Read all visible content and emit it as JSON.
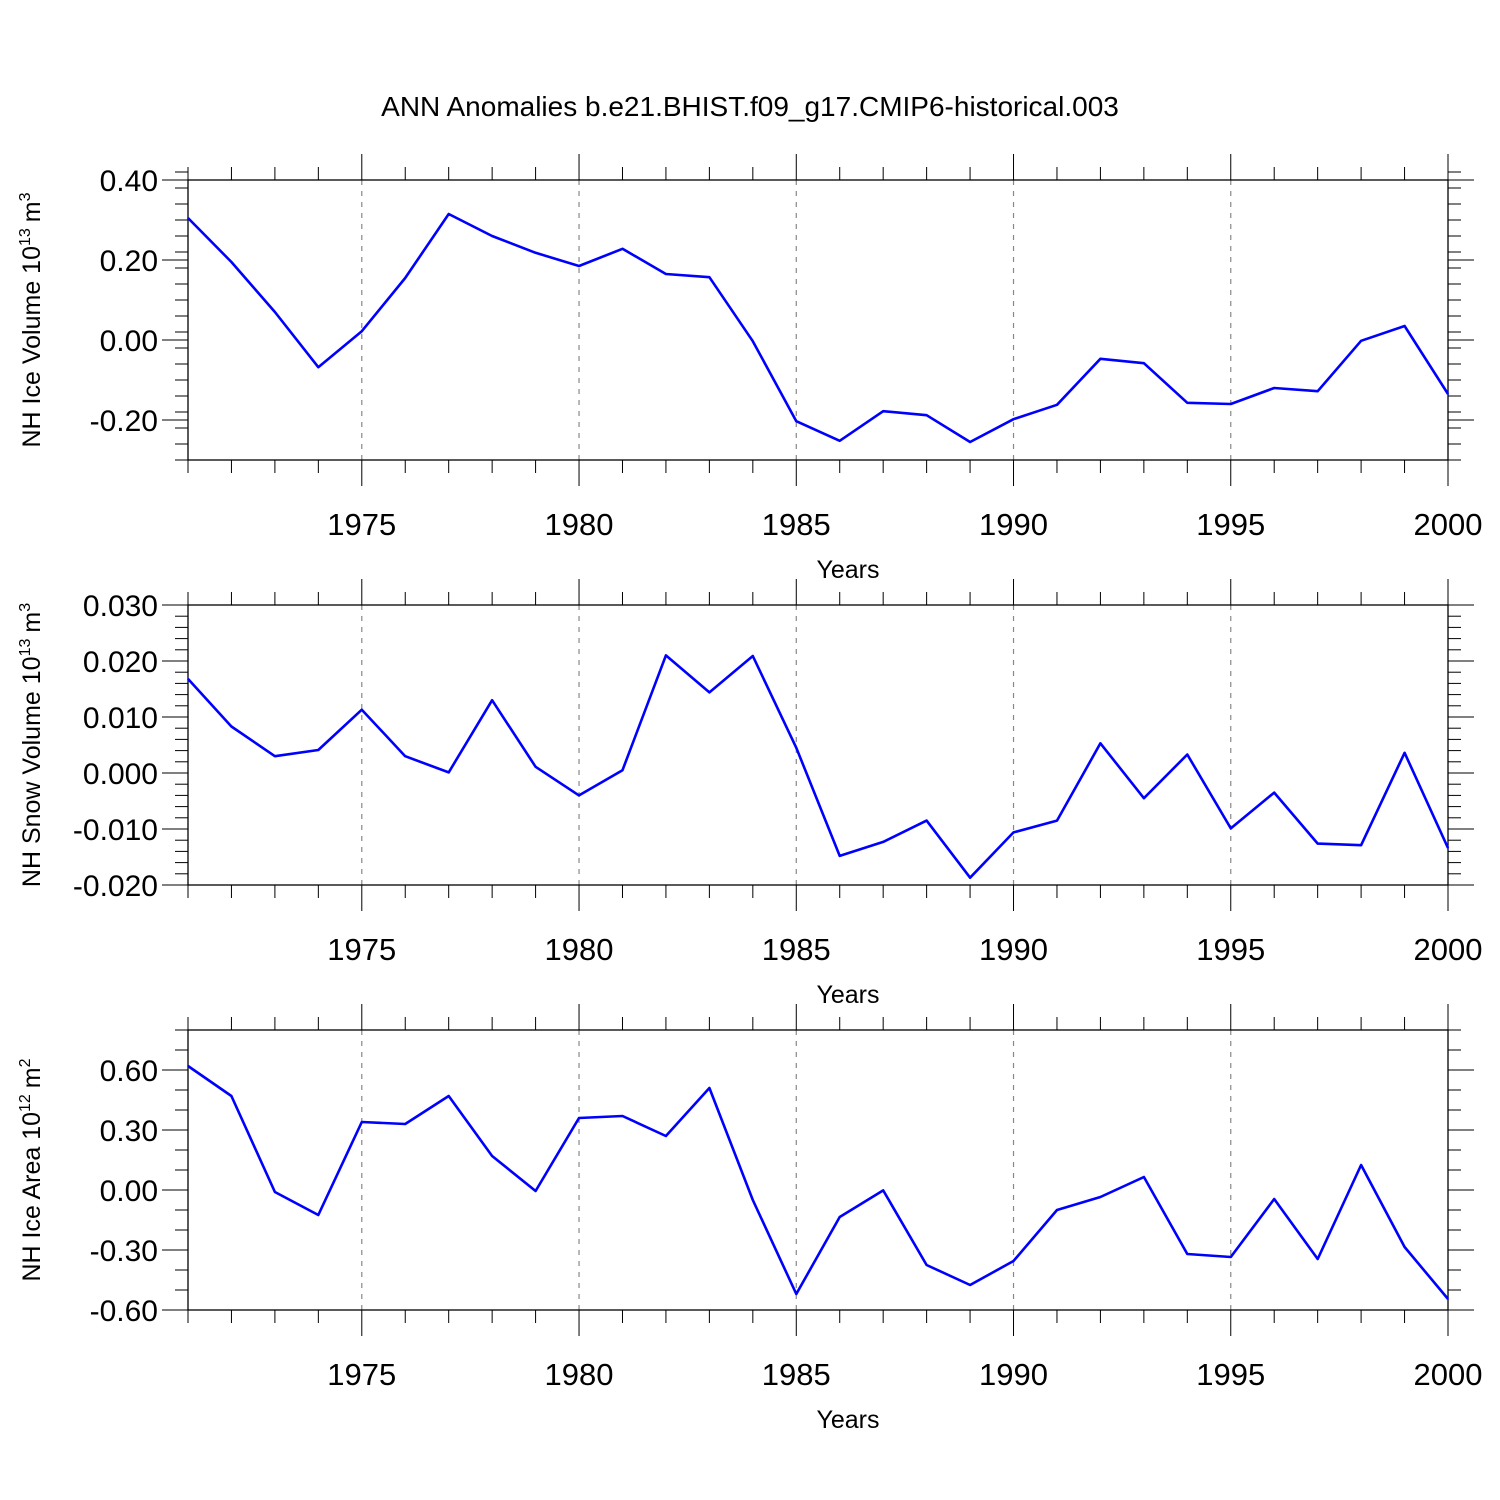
{
  "title": "ANN Anomalies b.e21.BHIST.f09_g17.CMIP6-historical.003",
  "colors": {
    "series": "#0000ff",
    "grid": "#888888",
    "axis": "#000000"
  },
  "chart_data": [
    {
      "type": "line",
      "xlabel": "Years",
      "ylabel_main": "NH Ice Volume 10",
      "ylabel_exp": "13",
      "ylabel_unit": "m",
      "ylabel_unit_exp": "3",
      "xlim": [
        1971,
        2000
      ],
      "ylim": [
        -0.3,
        0.4
      ],
      "yticks": [
        -0.2,
        0.0,
        0.2,
        0.4
      ],
      "ytick_labels": [
        "-0.20",
        "0.00",
        "0.20",
        "0.40"
      ],
      "yminor_step": 0.04,
      "xticks": [
        1975,
        1980,
        1985,
        1990,
        1995,
        2000
      ],
      "xtick_labels": [
        "1975",
        "1980",
        "1985",
        "1990",
        "1995",
        "2000"
      ],
      "grid": "vertical dashed at major x ticks",
      "x": [
        1971,
        1972,
        1973,
        1974,
        1975,
        1976,
        1977,
        1978,
        1979,
        1980,
        1981,
        1982,
        1983,
        1984,
        1985,
        1986,
        1987,
        1988,
        1989,
        1990,
        1991,
        1992,
        1993,
        1994,
        1995,
        1996,
        1997,
        1998,
        1999,
        2000
      ],
      "values": [
        0.305,
        0.195,
        0.07,
        -0.068,
        0.022,
        0.155,
        0.315,
        0.26,
        0.218,
        0.185,
        0.228,
        0.165,
        0.157,
        -0.003,
        -0.203,
        -0.252,
        -0.178,
        -0.188,
        -0.255,
        -0.198,
        -0.162,
        -0.047,
        -0.058,
        -0.157,
        -0.16,
        -0.12,
        -0.128,
        -0.002,
        0.035,
        -0.135
      ]
    },
    {
      "type": "line",
      "xlabel": "Years",
      "ylabel_main": "NH Snow Volume 10",
      "ylabel_exp": "13",
      "ylabel_unit": "m",
      "ylabel_unit_exp": "3",
      "xlim": [
        1971,
        2000
      ],
      "ylim": [
        -0.02,
        0.03
      ],
      "yticks": [
        -0.02,
        -0.01,
        0.0,
        0.01,
        0.02,
        0.03
      ],
      "ytick_labels": [
        "-0.020",
        "-0.010",
        "0.000",
        "0.010",
        "0.020",
        "0.030"
      ],
      "yminor_step": 0.002,
      "xticks": [
        1975,
        1980,
        1985,
        1990,
        1995,
        2000
      ],
      "xtick_labels": [
        "1975",
        "1980",
        "1985",
        "1990",
        "1995",
        "2000"
      ],
      "grid": "vertical dashed at major x ticks",
      "x": [
        1971,
        1972,
        1973,
        1974,
        1975,
        1976,
        1977,
        1978,
        1979,
        1980,
        1981,
        1982,
        1983,
        1984,
        1985,
        1986,
        1987,
        1988,
        1989,
        1990,
        1991,
        1992,
        1993,
        1994,
        1995,
        1996,
        1997,
        1998,
        1999,
        2000
      ],
      "values": [
        0.0168,
        0.0083,
        0.003,
        0.0041,
        0.0113,
        0.003,
        0.0001,
        0.013,
        0.0011,
        -0.004,
        0.0005,
        0.021,
        0.0144,
        0.0209,
        0.0045,
        -0.0148,
        -0.0123,
        -0.0085,
        -0.0187,
        -0.0106,
        -0.0085,
        0.0053,
        -0.0045,
        0.0033,
        -0.0099,
        -0.0035,
        -0.0126,
        -0.0129,
        0.0036,
        -0.0134
      ]
    },
    {
      "type": "line",
      "xlabel": "Years",
      "ylabel_main": "NH Ice Area 10",
      "ylabel_exp": "12",
      "ylabel_unit": "m",
      "ylabel_unit_exp": "2",
      "xlim": [
        1971,
        2000
      ],
      "ylim": [
        -0.6,
        0.8
      ],
      "yticks": [
        -0.6,
        -0.3,
        0.0,
        0.3,
        0.6
      ],
      "ytick_labels": [
        "-0.60",
        "-0.30",
        "0.00",
        "0.30",
        "0.60"
      ],
      "yminor_step": 0.1,
      "xticks": [
        1975,
        1980,
        1985,
        1990,
        1995,
        2000
      ],
      "xtick_labels": [
        "1975",
        "1980",
        "1985",
        "1990",
        "1995",
        "2000"
      ],
      "grid": "vertical dashed at major x ticks",
      "x": [
        1971,
        1972,
        1973,
        1974,
        1975,
        1976,
        1977,
        1978,
        1979,
        1980,
        1981,
        1982,
        1983,
        1984,
        1985,
        1986,
        1987,
        1988,
        1989,
        1990,
        1991,
        1992,
        1993,
        1994,
        1995,
        1996,
        1997,
        1998,
        1999,
        2000
      ],
      "values": [
        0.62,
        0.47,
        -0.01,
        -0.125,
        0.34,
        0.33,
        0.47,
        0.17,
        -0.005,
        0.36,
        0.37,
        0.27,
        0.51,
        -0.05,
        -0.52,
        -0.135,
        -0.002,
        -0.375,
        -0.475,
        -0.355,
        -0.1,
        -0.035,
        0.065,
        -0.32,
        -0.335,
        -0.045,
        -0.345,
        0.125,
        -0.285,
        -0.545
      ]
    }
  ]
}
